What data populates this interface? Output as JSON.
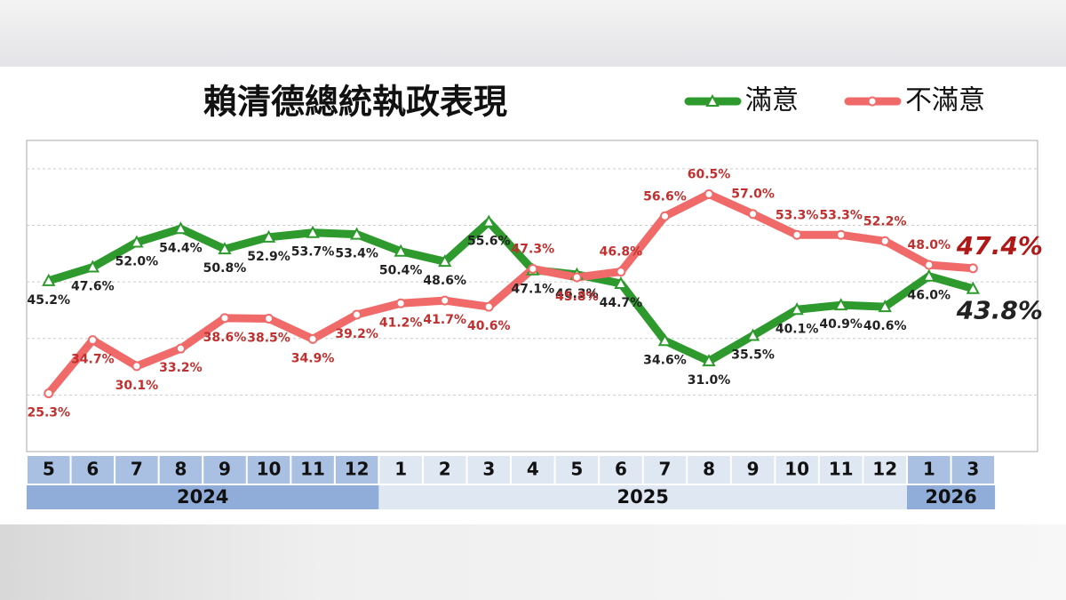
{
  "chart_data": {
    "type": "line",
    "title": "賴清德總統執政表現",
    "groups": [
      {
        "year": "2024",
        "months": [
          "5",
          "6",
          "7",
          "8",
          "9",
          "10",
          "11",
          "12"
        ]
      },
      {
        "year": "2025",
        "months": [
          "1",
          "2",
          "3",
          "4",
          "5",
          "6",
          "7",
          "8",
          "9",
          "10",
          "11",
          "12"
        ]
      },
      {
        "year": "2026",
        "months": [
          "1",
          "3"
        ]
      }
    ],
    "ylim": [
      15,
      70
    ],
    "yticks": [
      25,
      35,
      45,
      55,
      65
    ],
    "grid": true,
    "legend": "top-right",
    "series": [
      {
        "name": "滿意",
        "color": "#2e9a2e",
        "marker": "triangle",
        "values": [
          45.2,
          47.6,
          52.0,
          54.4,
          50.8,
          52.9,
          53.7,
          53.4,
          50.4,
          48.6,
          55.6,
          47.1,
          46.3,
          44.7,
          34.6,
          31.0,
          35.5,
          40.1,
          40.9,
          40.6,
          46.0,
          43.8
        ],
        "value_labels": [
          "45.2%",
          "47.6%",
          "52.0%",
          "54.4%",
          "50.8%",
          "52.9%",
          "53.7%",
          "53.4%",
          "50.4%",
          "48.6%",
          "55.6%",
          "47.1%",
          "46.3%",
          "44.7%",
          "34.6%",
          "31.0%",
          "35.5%",
          "40.1%",
          "40.9%",
          "40.6%",
          "46.0%",
          "43.8%"
        ]
      },
      {
        "name": "不滿意",
        "color": "#f06a6a",
        "marker": "circle",
        "values": [
          25.3,
          34.7,
          30.1,
          33.2,
          38.6,
          38.5,
          34.9,
          39.2,
          41.2,
          41.7,
          40.6,
          47.3,
          45.8,
          46.8,
          56.6,
          60.5,
          57.0,
          53.3,
          53.3,
          52.2,
          48.0,
          47.4
        ],
        "value_labels": [
          "25.3%",
          "34.7%",
          "30.1%",
          "33.2%",
          "38.6%",
          "38.5%",
          "34.9%",
          "39.2%",
          "41.2%",
          "41.7%",
          "40.6%",
          "47.3%",
          "45.8%",
          "46.8%",
          "56.6%",
          "60.5%",
          "57.0%",
          "53.3%",
          "53.3%",
          "52.2%",
          "48.0%",
          "47.4%"
        ]
      }
    ]
  }
}
